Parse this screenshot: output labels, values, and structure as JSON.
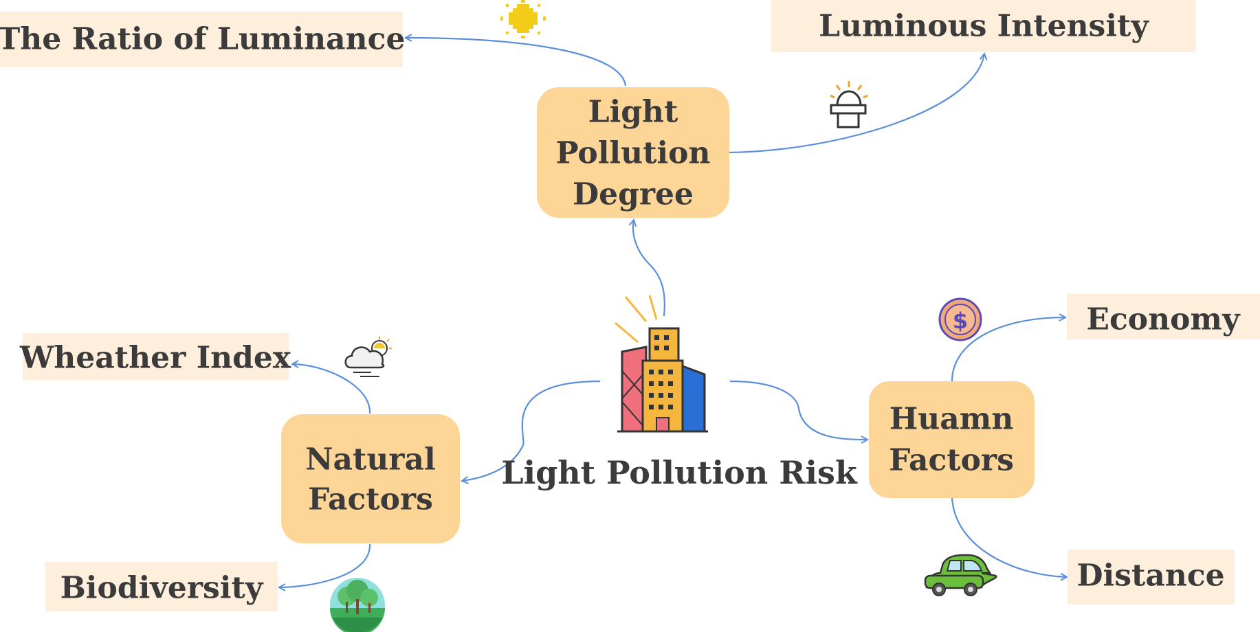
{
  "center": {
    "label": "Light Pollution Risk"
  },
  "nodes": {
    "degree": {
      "lines": [
        "Light",
        "Pollution",
        "Degree"
      ]
    },
    "natural": {
      "lines": [
        "Natural",
        "Factors"
      ]
    },
    "human": {
      "lines": [
        "Huamn",
        "Factors"
      ]
    }
  },
  "leaves": {
    "ratio": "The Ratio of Luminance",
    "intensity": "Luminous Intensity",
    "weather": "Wheather Index",
    "biodiversity": "Biodiversity",
    "economy": "Economy",
    "distance": "Distance"
  },
  "icons": {
    "ratio": "sun-icon",
    "intensity": "lamp-icon",
    "weather": "cloud-sun-icon",
    "biodiversity": "forest-icon",
    "economy": "dollar-coin-icon",
    "distance": "car-icon",
    "center": "city-buildings-icon"
  },
  "colors": {
    "node_fill": "#fdd596",
    "leaf_fill": "#fdefdc",
    "edge": "#5b8fd9",
    "text": "#3b3b3b"
  }
}
